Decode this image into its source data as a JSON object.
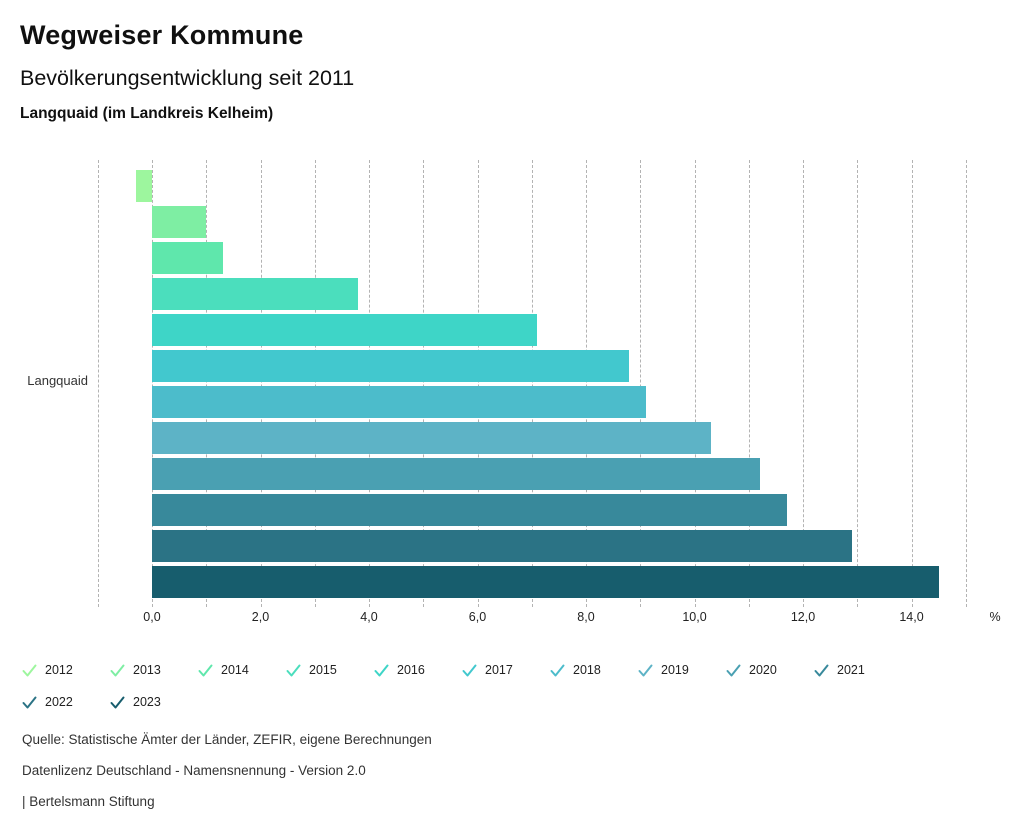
{
  "header": {
    "title": "Wegweiser Kommune",
    "subtitle": "Bevölkerungsentwicklung seit 2011",
    "region": "Langquaid (im Landkreis Kelheim)"
  },
  "chart_data": {
    "type": "bar",
    "orientation": "horizontal",
    "title": "Bevölkerungsentwicklung seit 2011",
    "category_label": "Langquaid",
    "unit": "%",
    "xlim": [
      -1,
      15
    ],
    "gridlines_every": 1,
    "grid_color": "#b3b3b3",
    "legend_position": "bottom",
    "x_ticks": [
      {
        "v": 0,
        "label": "0,0"
      },
      {
        "v": 2,
        "label": "2,0"
      },
      {
        "v": 4,
        "label": "4,0"
      },
      {
        "v": 6,
        "label": "6,0"
      },
      {
        "v": 8,
        "label": "8,0"
      },
      {
        "v": 10,
        "label": "10,0"
      },
      {
        "v": 12,
        "label": "12,0"
      },
      {
        "v": 14,
        "label": "14,0"
      }
    ],
    "series": [
      {
        "year": "2012",
        "value": -0.3,
        "color": "#9DF69E"
      },
      {
        "year": "2013",
        "value": 1.0,
        "color": "#7EEEA3"
      },
      {
        "year": "2014",
        "value": 1.3,
        "color": "#5FE7AC"
      },
      {
        "year": "2015",
        "value": 3.8,
        "color": "#4BDEBD"
      },
      {
        "year": "2016",
        "value": 7.1,
        "color": "#3ED5C7"
      },
      {
        "year": "2017",
        "value": 8.8,
        "color": "#42C8CE"
      },
      {
        "year": "2018",
        "value": 9.1,
        "color": "#4CBCCB"
      },
      {
        "year": "2019",
        "value": 10.3,
        "color": "#5DB3C6"
      },
      {
        "year": "2020",
        "value": 11.2,
        "color": "#4AA0B2"
      },
      {
        "year": "2021",
        "value": 11.7,
        "color": "#38899B"
      },
      {
        "year": "2022",
        "value": 12.9,
        "color": "#2B7385"
      },
      {
        "year": "2023",
        "value": 14.5,
        "color": "#175D6D"
      }
    ]
  },
  "footer": {
    "source": "Quelle: Statistische Ämter der Länder, ZEFIR, eigene Berechnungen",
    "license": "Datenlizenz Deutschland - Namensnennung - Version 2.0",
    "attribution": "| Bertelsmann Stiftung"
  }
}
